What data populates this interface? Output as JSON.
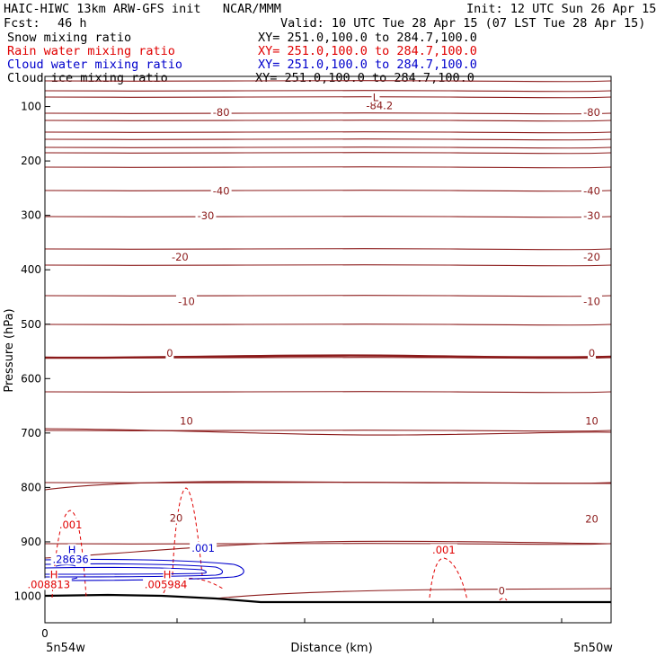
{
  "header": {
    "title": "HAIC-HIWC 13km ARW-GFS init   NCAR/MMM",
    "init": "Init: 12 UTC Sun 26 Apr 15",
    "fcst_label": "Fcst:",
    "fcst_value": "46 h",
    "valid": "Valid: 10 UTC Tue 28 Apr 15 (07 LST Tue 28 Apr 15)",
    "fields": [
      {
        "name": "Snow mixing ratio",
        "xy": "XY= 251.0,100.0 to 284.7,100.0",
        "color": "#000000"
      },
      {
        "name": "Rain water mixing ratio",
        "xy": "XY= 251.0,100.0 to 284.7,100.0",
        "color": "#e00000"
      },
      {
        "name": "Cloud water mixing ratio",
        "xy": "XY= 251.0,100.0 to 284.7,100.0",
        "color": "#0000cc"
      },
      {
        "name": "Cloud ice mixing ratio",
        "xy": "XY= 251.0,100.0 to 284.7,100.0",
        "color": "#000000"
      }
    ]
  },
  "chart_data": {
    "type": "contour-cross-section",
    "ylabel": "Pressure (hPa)",
    "xlabel": "Distance (km)",
    "y_ticks": [
      100,
      200,
      300,
      400,
      500,
      600,
      700,
      800,
      900,
      1000
    ],
    "ylim": [
      50,
      1050
    ],
    "x_range_km": [
      0,
      440
    ],
    "x_tick_label": "0",
    "x_end_labels": [
      "5n54w",
      "5n50w"
    ],
    "isotherm_color": "#8b1a1a",
    "temperature_labels": [
      {
        "text": "-84.2",
        "x_km": 260,
        "p": 100
      },
      {
        "text": "L",
        "x_km": 257,
        "p": 85
      },
      {
        "text": "-80",
        "x_km": 137,
        "p": 112
      },
      {
        "text": "-80",
        "x_km": 425,
        "p": 112
      },
      {
        "text": "-40",
        "x_km": 137,
        "p": 257
      },
      {
        "text": "-40",
        "x_km": 425,
        "p": 257
      },
      {
        "text": "-30",
        "x_km": 125,
        "p": 302
      },
      {
        "text": "-30",
        "x_km": 425,
        "p": 302
      },
      {
        "text": "-20",
        "x_km": 105,
        "p": 378
      },
      {
        "text": "-20",
        "x_km": 425,
        "p": 378
      },
      {
        "text": "-10",
        "x_km": 110,
        "p": 460
      },
      {
        "text": "-10",
        "x_km": 425,
        "p": 460
      },
      {
        "text": "0",
        "x_km": 97,
        "p": 555
      },
      {
        "text": "0",
        "x_km": 425,
        "p": 555
      },
      {
        "text": "10",
        "x_km": 110,
        "p": 680
      },
      {
        "text": "10",
        "x_km": 425,
        "p": 680
      },
      {
        "text": "20",
        "x_km": 102,
        "p": 858
      },
      {
        "text": "20",
        "x_km": 425,
        "p": 860
      },
      {
        "text": "0",
        "x_km": 355,
        "p": 992
      }
    ],
    "rain_labels": [
      {
        "text": ".001",
        "x_km": 20,
        "p": 870
      },
      {
        "text": "H",
        "x_km": 7,
        "p": 962
      },
      {
        "text": ".008813",
        "x_km": 3,
        "p": 980
      },
      {
        "text": "H",
        "x_km": 95,
        "p": 962
      },
      {
        "text": ".005984",
        "x_km": 94,
        "p": 980
      },
      {
        "text": ".001",
        "x_km": 310,
        "p": 917
      }
    ],
    "cloud_water_labels": [
      {
        "text": "H",
        "x_km": 21,
        "p": 917
      },
      {
        "text": ".28636",
        "x_km": 20,
        "p": 934
      },
      {
        "text": ".001",
        "x_km": 123,
        "p": 913
      }
    ]
  }
}
